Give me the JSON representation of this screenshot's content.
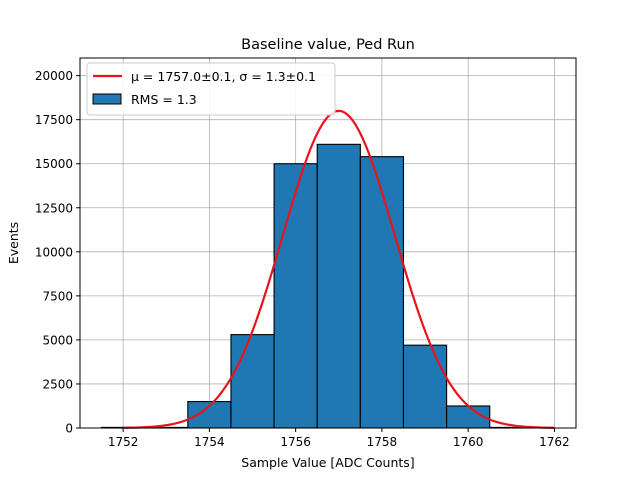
{
  "chart_data": {
    "type": "bar",
    "title": "Baseline value, Ped Run",
    "xlabel": "Sample Value [ADC Counts]",
    "ylabel": "Events",
    "xlim": [
      1751.0,
      1762.5
    ],
    "ylim": [
      0,
      21000
    ],
    "xticks": [
      1752,
      1754,
      1756,
      1758,
      1760,
      1762
    ],
    "yticks": [
      0,
      2500,
      5000,
      7500,
      10000,
      12500,
      15000,
      17500,
      20000
    ],
    "grid": true,
    "legend_position": "top-left",
    "histogram": {
      "name": "RMS = 1.3",
      "color": "#1f77b4",
      "edge_color": "#000000",
      "bins": [
        {
          "x0": 1751.5,
          "x1": 1752.5,
          "value": 0
        },
        {
          "x0": 1752.5,
          "x1": 1753.5,
          "value": 0
        },
        {
          "x0": 1753.5,
          "x1": 1754.5,
          "value": 1500
        },
        {
          "x0": 1754.5,
          "x1": 1755.5,
          "value": 5300
        },
        {
          "x0": 1755.5,
          "x1": 1756.5,
          "value": 15000
        },
        {
          "x0": 1756.5,
          "x1": 1757.5,
          "value": 16100
        },
        {
          "x0": 1757.5,
          "x1": 1758.5,
          "value": 15400
        },
        {
          "x0": 1758.5,
          "x1": 1759.5,
          "value": 4700
        },
        {
          "x0": 1759.5,
          "x1": 1760.5,
          "value": 1250
        },
        {
          "x0": 1760.5,
          "x1": 1761.5,
          "value": 0
        }
      ]
    },
    "fit": {
      "name": "μ = 1757.0±0.1, σ = 1.3±0.1",
      "color": "#e8141c",
      "type": "gaussian",
      "mu": 1757.0,
      "sigma": 1.3,
      "amplitude": 18000,
      "x_range": [
        1752,
        1762
      ]
    }
  }
}
